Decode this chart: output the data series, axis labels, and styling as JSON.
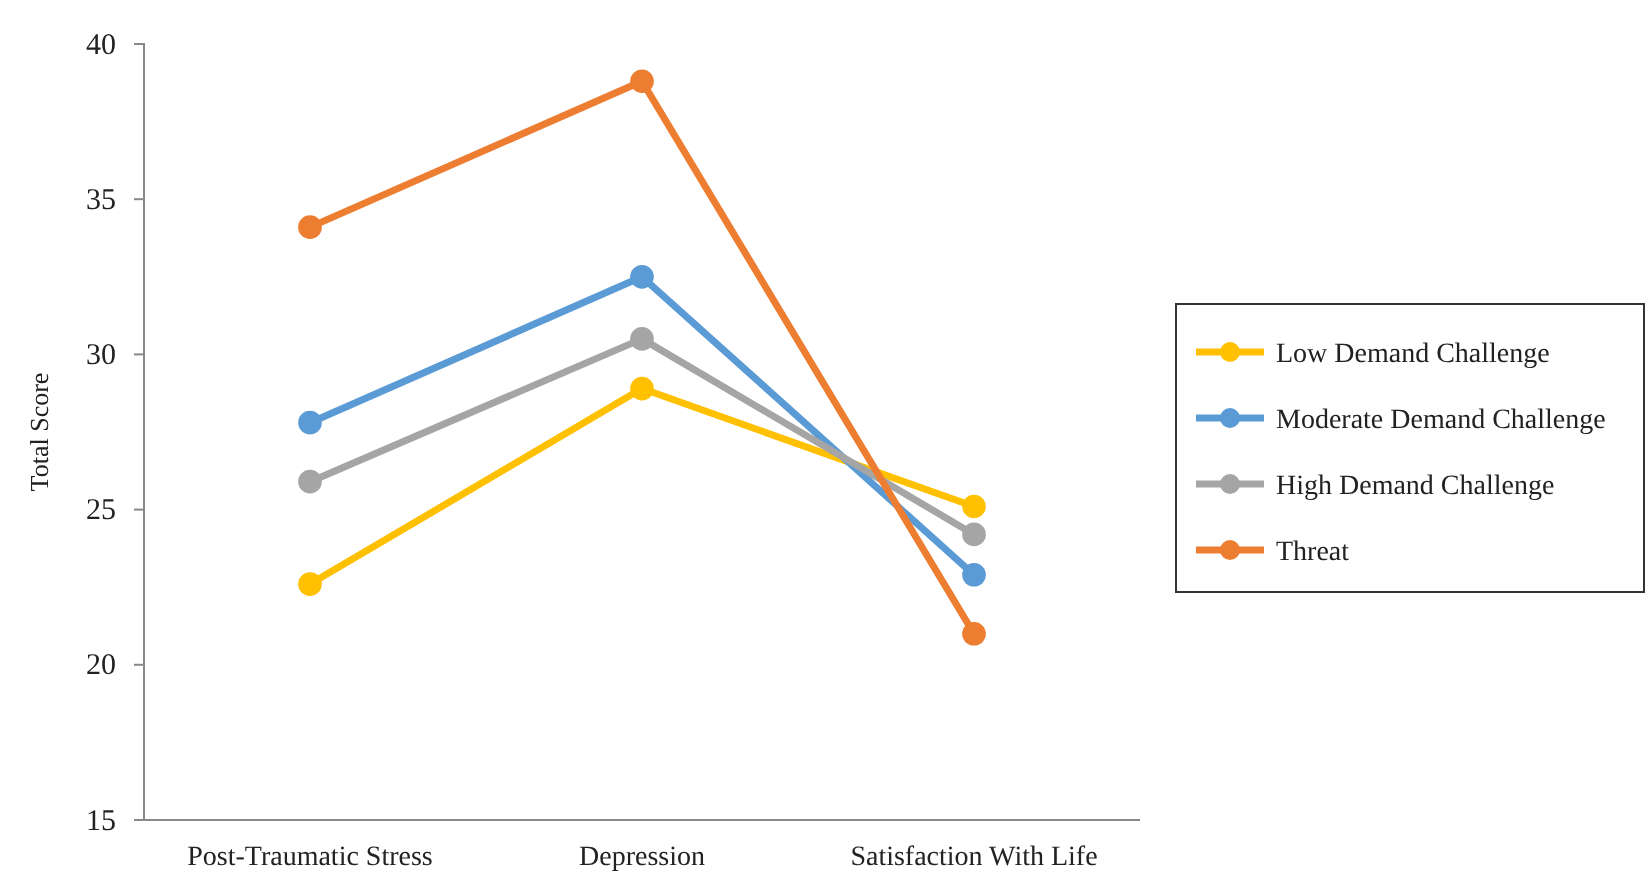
{
  "chart_data": {
    "type": "line",
    "ylabel": "Total Score",
    "categories": [
      "Post-Traumatic Stress",
      "Depression",
      "Satisfaction With Life"
    ],
    "ylim": [
      15,
      40
    ],
    "yticks": [
      15,
      20,
      25,
      30,
      35,
      40
    ],
    "grid": false,
    "legend": "right",
    "marker": "circle",
    "line_style": "solid",
    "series": [
      {
        "name": "Low Demand Challenge",
        "color": "#ffc000",
        "values": [
          22.6,
          28.9,
          25.1
        ]
      },
      {
        "name": "Moderate Demand Challenge",
        "color": "#5b9bd5",
        "values": [
          27.8,
          32.5,
          22.9
        ]
      },
      {
        "name": "High Demand Challenge",
        "color": "#a5a5a5",
        "values": [
          25.9,
          30.5,
          24.2
        ]
      },
      {
        "name": "Threat",
        "color": "#ed7d31",
        "values": [
          34.1,
          38.8,
          21.0
        ]
      }
    ]
  }
}
